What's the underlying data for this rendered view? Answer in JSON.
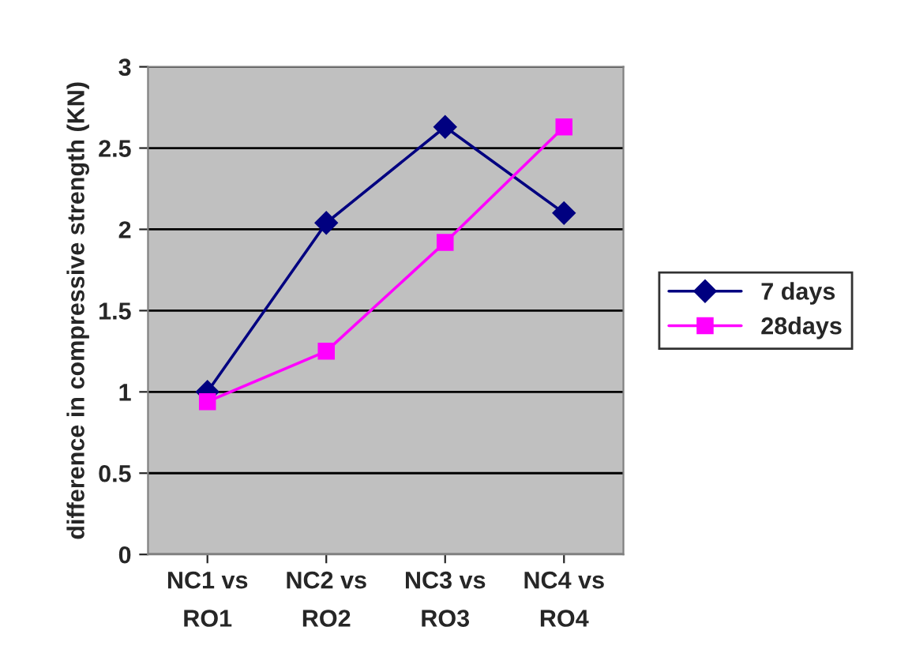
{
  "chart_data": {
    "type": "line",
    "ylabel": "difference in compressive strength (KN)",
    "categories": [
      "NC1 vs\nRO1",
      "NC2 vs\nRO2",
      "NC3 vs\nRO3",
      "NC4 vs\nRO4"
    ],
    "series": [
      {
        "name": "7 days",
        "color": "#000080",
        "marker": "diamond",
        "values": [
          1.0,
          2.04,
          2.63,
          2.1
        ]
      },
      {
        "name": "28days",
        "color": "#ff00ff",
        "marker": "square",
        "values": [
          0.94,
          1.25,
          1.92,
          2.63
        ]
      }
    ],
    "ylim": [
      0,
      3
    ],
    "yticks": [
      0,
      0.5,
      1,
      1.5,
      2,
      2.5,
      3
    ],
    "grid": "y",
    "legend": "right",
    "line_style": "solid"
  }
}
